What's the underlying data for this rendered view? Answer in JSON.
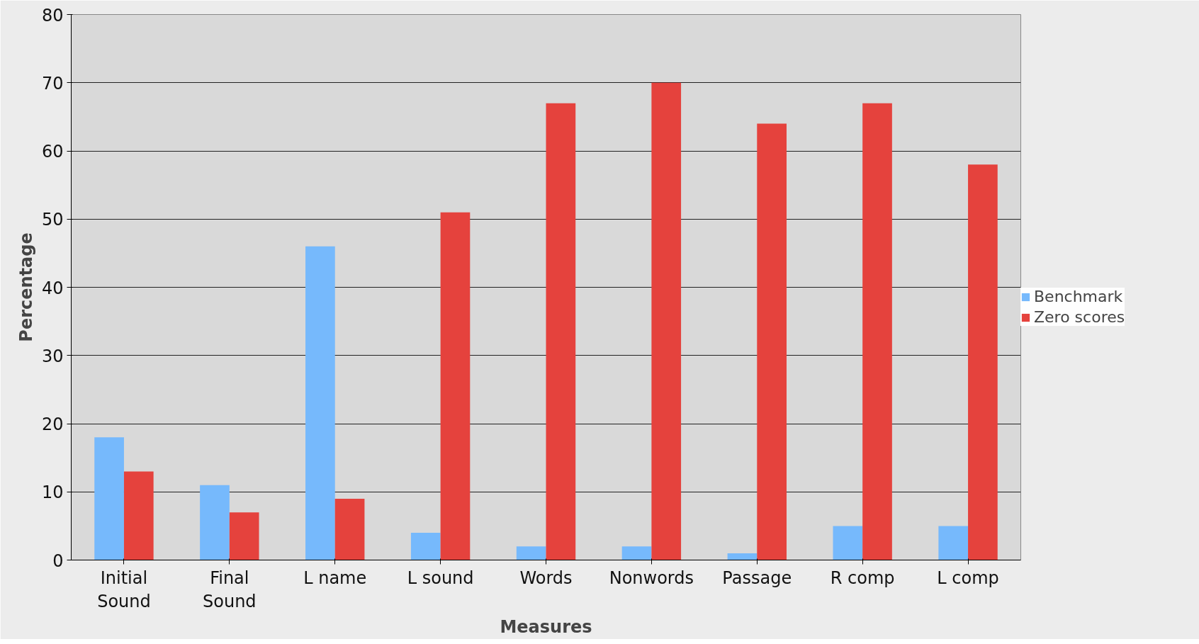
{
  "chart_data": {
    "type": "bar",
    "categories": [
      "Initial\nSound",
      "Final\nSound",
      "L name",
      "L sound",
      "Words",
      "Nonwords",
      "Passage",
      "R comp",
      "L comp"
    ],
    "series": [
      {
        "name": "Benchmark",
        "color": "#76b9fc",
        "values": [
          18,
          11,
          46,
          4,
          2,
          2,
          1,
          5,
          5
        ]
      },
      {
        "name": "Zero scores",
        "color": "#e5423d",
        "values": [
          13,
          7,
          9,
          51,
          67,
          70,
          64,
          67,
          58
        ]
      }
    ],
    "xlabel": "Measures",
    "ylabel": "Percentage",
    "ylim": [
      0,
      80
    ],
    "yticks": [
      0,
      10,
      20,
      30,
      40,
      50,
      60,
      70,
      80
    ],
    "grid": "y",
    "legend": "right"
  }
}
